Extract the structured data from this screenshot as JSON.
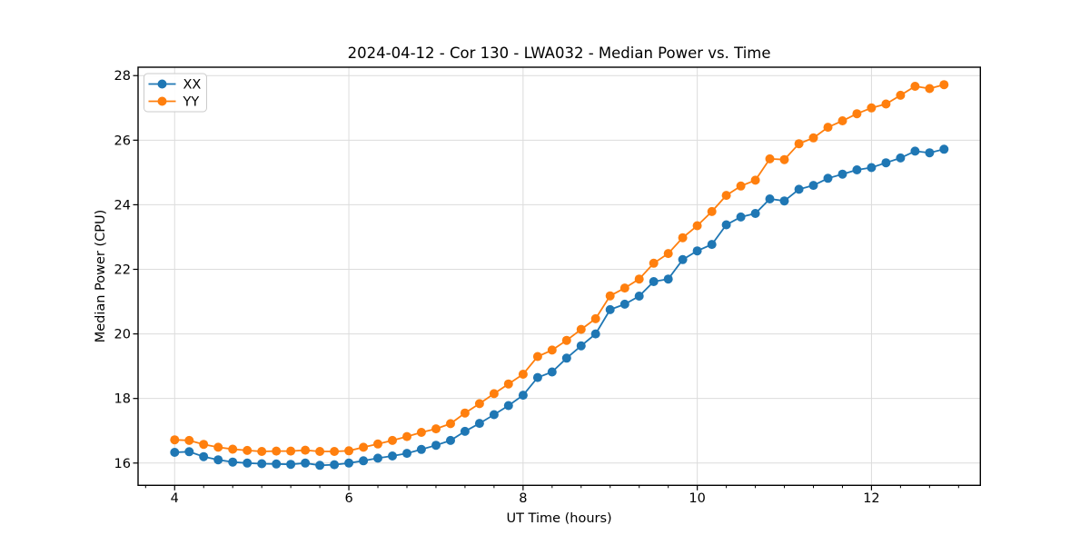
{
  "figure": {
    "background": "#ffffff"
  },
  "chart_data": {
    "type": "line",
    "title": "2024-04-12 - Cor 130 - LWA032 - Median Power vs. Time",
    "xlabel": "UT Time (hours)",
    "ylabel": "Median Power (CPU)",
    "xlim": [
      3.58,
      13.25
    ],
    "ylim": [
      15.31,
      28.26
    ],
    "x_major_ticks": [
      4,
      6,
      8,
      10,
      12
    ],
    "x_minor_tick_step": 0.33333,
    "y_major_ticks": [
      16,
      18,
      20,
      22,
      24,
      26,
      28
    ],
    "grid": true,
    "legend_position": "upper-left",
    "colors": {
      "XX": "#1f77b4",
      "YY": "#ff7f0e",
      "grid": "#dcdcdc",
      "spine": "#000000"
    },
    "marker": "circle",
    "x": [
      4.0,
      4.167,
      4.333,
      4.5,
      4.667,
      4.833,
      5.0,
      5.167,
      5.333,
      5.5,
      5.667,
      5.833,
      6.0,
      6.167,
      6.333,
      6.5,
      6.667,
      6.833,
      7.0,
      7.167,
      7.333,
      7.5,
      7.667,
      7.833,
      8.0,
      8.167,
      8.333,
      8.5,
      8.667,
      8.833,
      9.0,
      9.167,
      9.333,
      9.5,
      9.667,
      9.833,
      10.0,
      10.167,
      10.333,
      10.5,
      10.667,
      10.833,
      11.0,
      11.167,
      11.333,
      11.5,
      11.667,
      11.833,
      12.0,
      12.167,
      12.333,
      12.5,
      12.667,
      12.833
    ],
    "series": [
      {
        "name": "XX",
        "color": "#1f77b4",
        "values": [
          16.33,
          16.35,
          16.2,
          16.1,
          16.03,
          16.0,
          15.98,
          15.97,
          15.96,
          16.0,
          15.93,
          15.95,
          16.0,
          16.07,
          16.15,
          16.22,
          16.3,
          16.42,
          16.55,
          16.7,
          16.98,
          17.23,
          17.5,
          17.78,
          18.1,
          18.65,
          18.82,
          19.25,
          19.63,
          20.0,
          20.75,
          20.92,
          21.17,
          21.62,
          21.7,
          22.3,
          22.57,
          22.77,
          23.38,
          23.62,
          23.73,
          24.18,
          24.12,
          24.48,
          24.6,
          24.82,
          24.95,
          25.08,
          25.15,
          25.3,
          25.45,
          25.66,
          25.61,
          25.72
        ]
      },
      {
        "name": "YY",
        "color": "#ff7f0e",
        "values": [
          16.72,
          16.7,
          16.58,
          16.49,
          16.43,
          16.39,
          16.36,
          16.37,
          16.37,
          16.4,
          16.36,
          16.36,
          16.38,
          16.49,
          16.59,
          16.7,
          16.82,
          16.95,
          17.06,
          17.22,
          17.55,
          17.84,
          18.15,
          18.45,
          18.75,
          19.3,
          19.5,
          19.8,
          20.14,
          20.47,
          21.18,
          21.42,
          21.7,
          22.19,
          22.49,
          22.98,
          23.35,
          23.79,
          24.29,
          24.58,
          24.76,
          25.42,
          25.4,
          25.89,
          26.07,
          26.4,
          26.6,
          26.82,
          27.0,
          27.12,
          27.39,
          27.67,
          27.6,
          27.72
        ]
      }
    ]
  }
}
